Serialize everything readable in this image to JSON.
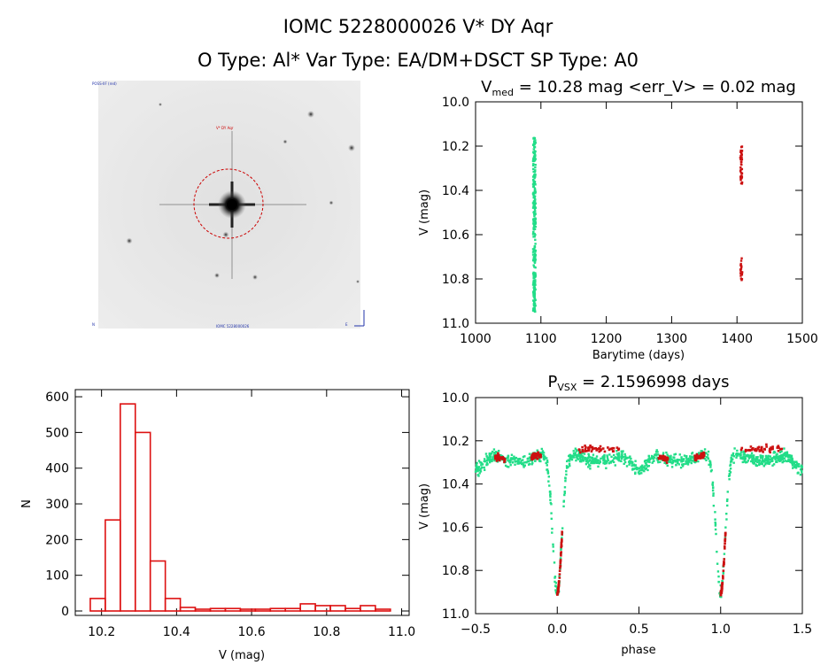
{
  "header": {
    "line1": "IOMC 5228000026    V* DY Aqr",
    "line2": "O Type: Al*  Var Type: EA/DM+DSCT  SP Type: A0"
  },
  "image_panel": {
    "label_top_left": "POSS-IIF (red)",
    "label_target": "V* DY Aqr",
    "label_bottom": "IOMC 5228000026",
    "label_bottom_left": "N",
    "label_bottom_right": "E"
  },
  "colors": {
    "omc_green": "#22dd88",
    "asassn_red": "#cc1111",
    "hist_red": "#dd1111"
  },
  "chart_data": [
    {
      "type": "scatter",
      "title_main": "V",
      "title_sub": "med",
      "title_rest": " = 10.28 mag <err_V> = 0.02 mag",
      "xlabel": "Barytime (days)",
      "ylabel": "V (mag)",
      "xlim": [
        1000,
        1500
      ],
      "ylim": [
        11.0,
        10.0
      ],
      "xticks": [
        "1000",
        "1100",
        "1200",
        "1300",
        "1400",
        "1500"
      ],
      "yticks": [
        "10.0",
        "10.2",
        "10.4",
        "10.6",
        "10.8",
        "11.0"
      ],
      "series": [
        {
          "x_range": [
            1088,
            1092
          ],
          "y_range": [
            10.16,
            10.95
          ]
        },
        {
          "x_range": [
            1405,
            1408
          ],
          "y_range": [
            10.2,
            10.37
          ]
        },
        {
          "x_range": [
            1405,
            1408
          ],
          "y_range": [
            10.7,
            10.81
          ]
        }
      ]
    },
    {
      "type": "bar",
      "xlabel": "V (mag)",
      "ylabel": "N",
      "xlim": [
        10.13,
        11.02
      ],
      "ylim": [
        0,
        620
      ],
      "xticks": [
        "10.2",
        "10.4",
        "10.6",
        "10.8",
        "11.0"
      ],
      "yticks": [
        "0",
        "100",
        "200",
        "300",
        "400",
        "500",
        "600"
      ],
      "bin_left": [
        10.17,
        10.21,
        10.25,
        10.29,
        10.33,
        10.37,
        10.41,
        10.45,
        10.49,
        10.53,
        10.57,
        10.61,
        10.65,
        10.69,
        10.73,
        10.77,
        10.81,
        10.85,
        10.89,
        10.93
      ],
      "bin_width": 0.04,
      "values": [
        35,
        255,
        580,
        500,
        140,
        35,
        10,
        5,
        7,
        7,
        5,
        5,
        7,
        7,
        20,
        15,
        15,
        7,
        15,
        5
      ]
    },
    {
      "type": "scatter",
      "title_main": "P",
      "title_sub": "VSX",
      "title_rest": " = 2.1596998 days",
      "xlabel": "phase",
      "ylabel": "V (mag)",
      "xlim": [
        -0.5,
        1.5
      ],
      "ylim": [
        11.0,
        10.0
      ],
      "xticks": [
        "−0.5",
        "0.0",
        "0.5",
        "1.0",
        "1.5"
      ],
      "yticks": [
        "10.0",
        "10.2",
        "10.4",
        "10.6",
        "10.8",
        "11.0"
      ],
      "period": 2.1596998,
      "primary_min_phase": 0.0,
      "primary_min_depth": 10.93,
      "secondary_min_phase": 0.5,
      "secondary_min_depth": 10.36,
      "out_of_eclipse_level": 10.27
    }
  ]
}
